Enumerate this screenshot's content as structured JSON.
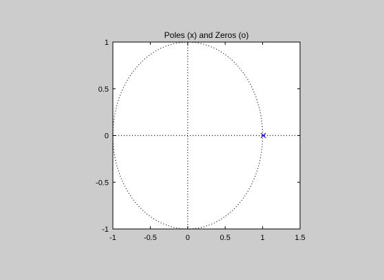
{
  "chart_data": {
    "type": "scatter",
    "title": "Poles (x) and Zeros (o)",
    "xlabel": "",
    "ylabel": "",
    "xlim": [
      -1,
      1.5
    ],
    "ylim": [
      -1,
      1
    ],
    "xticks": [
      -1,
      -0.5,
      0,
      0.5,
      1,
      1.5
    ],
    "yticks": [
      -1,
      -0.5,
      0,
      0.5,
      1
    ],
    "xtick_labels": [
      "-1",
      "-0.5",
      "0",
      "0.5",
      "1",
      "1.5"
    ],
    "ytick_labels": [
      "-1",
      "-0.5",
      "0",
      "0.5",
      "1"
    ],
    "unit_circle": {
      "center": [
        0,
        0
      ],
      "radius": 1,
      "style": "dotted"
    },
    "axes_lines": {
      "x_axis": true,
      "y_axis": true,
      "style": "dotted"
    },
    "series": [
      {
        "marker": "x",
        "color": "#0000ff",
        "points": [
          {
            "x": 1.01,
            "y": 0
          }
        ]
      }
    ],
    "grid": false,
    "background": "#cccccc",
    "axes_background": "#ffffff"
  }
}
